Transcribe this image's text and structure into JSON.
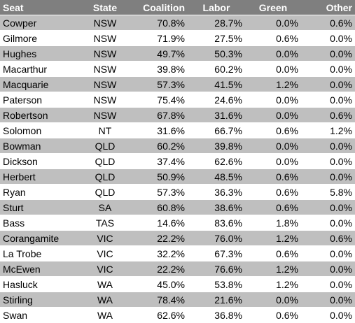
{
  "columns": [
    "Seat",
    "State",
    "Coalition",
    "Labor",
    "Green",
    "Other"
  ],
  "rows": [
    [
      "Cowper",
      "NSW",
      "70.8%",
      "28.7%",
      "0.0%",
      "0.6%"
    ],
    [
      "Gilmore",
      "NSW",
      "71.9%",
      "27.5%",
      "0.6%",
      "0.0%"
    ],
    [
      "Hughes",
      "NSW",
      "49.7%",
      "50.3%",
      "0.0%",
      "0.0%"
    ],
    [
      "Macarthur",
      "NSW",
      "39.8%",
      "60.2%",
      "0.0%",
      "0.0%"
    ],
    [
      "Macquarie",
      "NSW",
      "57.3%",
      "41.5%",
      "1.2%",
      "0.0%"
    ],
    [
      "Paterson",
      "NSW",
      "75.4%",
      "24.6%",
      "0.0%",
      "0.0%"
    ],
    [
      "Robertson",
      "NSW",
      "67.8%",
      "31.6%",
      "0.0%",
      "0.6%"
    ],
    [
      "Solomon",
      "NT",
      "31.6%",
      "66.7%",
      "0.6%",
      "1.2%"
    ],
    [
      "Bowman",
      "QLD",
      "60.2%",
      "39.8%",
      "0.0%",
      "0.0%"
    ],
    [
      "Dickson",
      "QLD",
      "37.4%",
      "62.6%",
      "0.0%",
      "0.0%"
    ],
    [
      "Herbert",
      "QLD",
      "50.9%",
      "48.5%",
      "0.6%",
      "0.0%"
    ],
    [
      "Ryan",
      "QLD",
      "57.3%",
      "36.3%",
      "0.6%",
      "5.8%"
    ],
    [
      "Sturt",
      "SA",
      "60.8%",
      "38.6%",
      "0.6%",
      "0.0%"
    ],
    [
      "Bass",
      "TAS",
      "14.6%",
      "83.6%",
      "1.8%",
      "0.0%"
    ],
    [
      "Corangamite",
      "VIC",
      "22.2%",
      "76.0%",
      "1.2%",
      "0.6%"
    ],
    [
      "La Trobe",
      "VIC",
      "32.2%",
      "67.3%",
      "0.6%",
      "0.0%"
    ],
    [
      "McEwen",
      "VIC",
      "22.2%",
      "76.6%",
      "1.2%",
      "0.0%"
    ],
    [
      "Hasluck",
      "WA",
      "45.0%",
      "53.8%",
      "1.2%",
      "0.0%"
    ],
    [
      "Stirling",
      "WA",
      "78.4%",
      "21.6%",
      "0.0%",
      "0.0%"
    ],
    [
      "Swan",
      "WA",
      "62.6%",
      "36.8%",
      "0.6%",
      "0.0%"
    ]
  ],
  "colors": {
    "header_bg": "#7f7f7f",
    "header_text": "#ffffff",
    "shaded_row_bg": "#bfbfbf",
    "plain_row_bg": "#ffffff"
  }
}
